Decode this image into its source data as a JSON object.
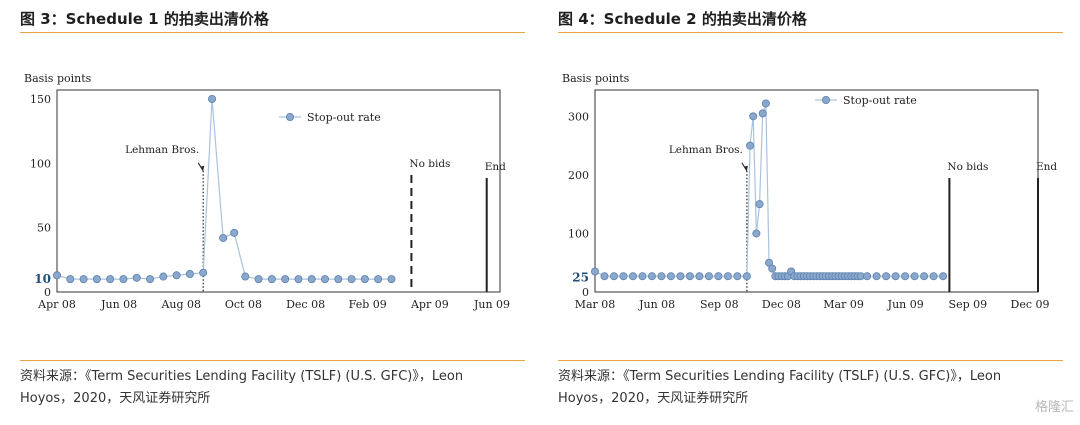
{
  "charts": [
    {
      "title": "图 3：Schedule 1 的拍卖出清价格",
      "source_line1": "资料来源：《Term Securities Lending Facility (TSLF) (U.S. GFC)》，Leon",
      "source_line2": "Hoyos，2020，天风证券研究所"
    },
    {
      "title": "图 4：Schedule 2 的拍卖出清价格",
      "source_line1": "资料来源：《Term Securities Lending Facility (TSLF) (U.S. GFC)》，Leon",
      "source_line2": "Hoyos，2020，天风证券研究所"
    }
  ],
  "watermark": "格隆汇",
  "chart_data": [
    {
      "type": "line",
      "ylabel": "Basis points",
      "y_ticks": [
        150,
        100,
        50,
        10
      ],
      "highlight_tick": 10,
      "ylim": [
        0,
        157
      ],
      "x_ticks": [
        "Apr 08",
        "Jun 08",
        "Aug 08",
        "Oct 08",
        "Dec 08",
        "Feb 09",
        "Apr 09",
        "Jun 09"
      ],
      "legend": "Stop-out rate",
      "legend_position": "top-right",
      "grid": false,
      "series": [
        {
          "name": "Stop-out rate",
          "x": [
            0,
            0.3,
            0.6,
            0.9,
            1.2,
            1.5,
            1.8,
            2.1,
            2.4,
            2.7,
            3.0,
            3.3,
            3.5,
            3.75,
            4.0,
            4.25,
            4.55,
            4.85,
            5.15,
            5.45,
            5.75,
            6.05,
            6.35,
            6.65,
            6.95,
            7.25,
            7.55
          ],
          "y": [
            13,
            10,
            10,
            10,
            10,
            10,
            11,
            10,
            12,
            13,
            14,
            15,
            150,
            42,
            46,
            12,
            10,
            10,
            10,
            10,
            10,
            10,
            10,
            10,
            10,
            10,
            10
          ]
        }
      ],
      "annotations": [
        {
          "label": "Lehman Bros.",
          "x": 3.3,
          "style": "dotted"
        },
        {
          "label": "No bids",
          "x": 8.0,
          "style": "dashed"
        },
        {
          "label": "End",
          "x": 9.7,
          "style": "solid"
        }
      ],
      "xlim": [
        0,
        10.0
      ]
    },
    {
      "type": "line",
      "ylabel": "Basis points",
      "y_ticks": [
        300,
        200,
        100,
        25
      ],
      "highlight_tick": 25,
      "ylim": [
        0,
        345
      ],
      "x_ticks": [
        "Mar 08",
        "Jun 08",
        "Sep 08",
        "Dec 08",
        "Mar 09",
        "Jun 09",
        "Sep 09",
        "Dec 09"
      ],
      "legend": "Stop-out rate",
      "legend_position": "top-right",
      "grid": false,
      "series": [
        {
          "name": "Stop-out rate",
          "x": [
            0,
            0.15,
            0.3,
            0.45,
            0.6,
            0.75,
            0.9,
            1.05,
            1.2,
            1.35,
            1.5,
            1.65,
            1.8,
            1.95,
            2.1,
            2.25,
            2.4,
            2.45,
            2.5,
            2.55,
            2.6,
            2.65,
            2.7,
            2.75,
            2.8,
            2.85,
            2.9,
            2.95,
            3.0,
            3.05,
            3.1,
            3.15,
            3.2,
            3.25,
            3.3,
            3.35,
            3.4,
            3.45,
            3.5,
            3.55,
            3.6,
            3.65,
            3.7,
            3.75,
            3.8,
            3.85,
            3.9,
            3.95,
            4.0,
            4.05,
            4.1,
            4.15,
            4.2,
            4.3,
            4.45,
            4.6,
            4.75,
            4.9,
            5.05,
            5.2,
            5.35,
            5.5
          ],
          "y": [
            35,
            27,
            27,
            27,
            27,
            27,
            27,
            27,
            27,
            27,
            27,
            27,
            27,
            27,
            27,
            27,
            27,
            250,
            300,
            100,
            150,
            305,
            322,
            50,
            40,
            27,
            27,
            27,
            27,
            27,
            35,
            27,
            27,
            27,
            27,
            27,
            27,
            27,
            27,
            27,
            27,
            27,
            27,
            27,
            27,
            27,
            27,
            27,
            27,
            27,
            27,
            27,
            27,
            27,
            27,
            27,
            27,
            27,
            27,
            27,
            27,
            27
          ]
        }
      ],
      "annotations": [
        {
          "label": "Lehman Bros.",
          "x": 2.4,
          "style": "dotted"
        },
        {
          "label": "No bids",
          "x": 5.6,
          "style": "solid"
        },
        {
          "label": "End",
          "x": 7.0,
          "style": "solid"
        }
      ],
      "xlim": [
        0,
        7.0
      ]
    }
  ]
}
